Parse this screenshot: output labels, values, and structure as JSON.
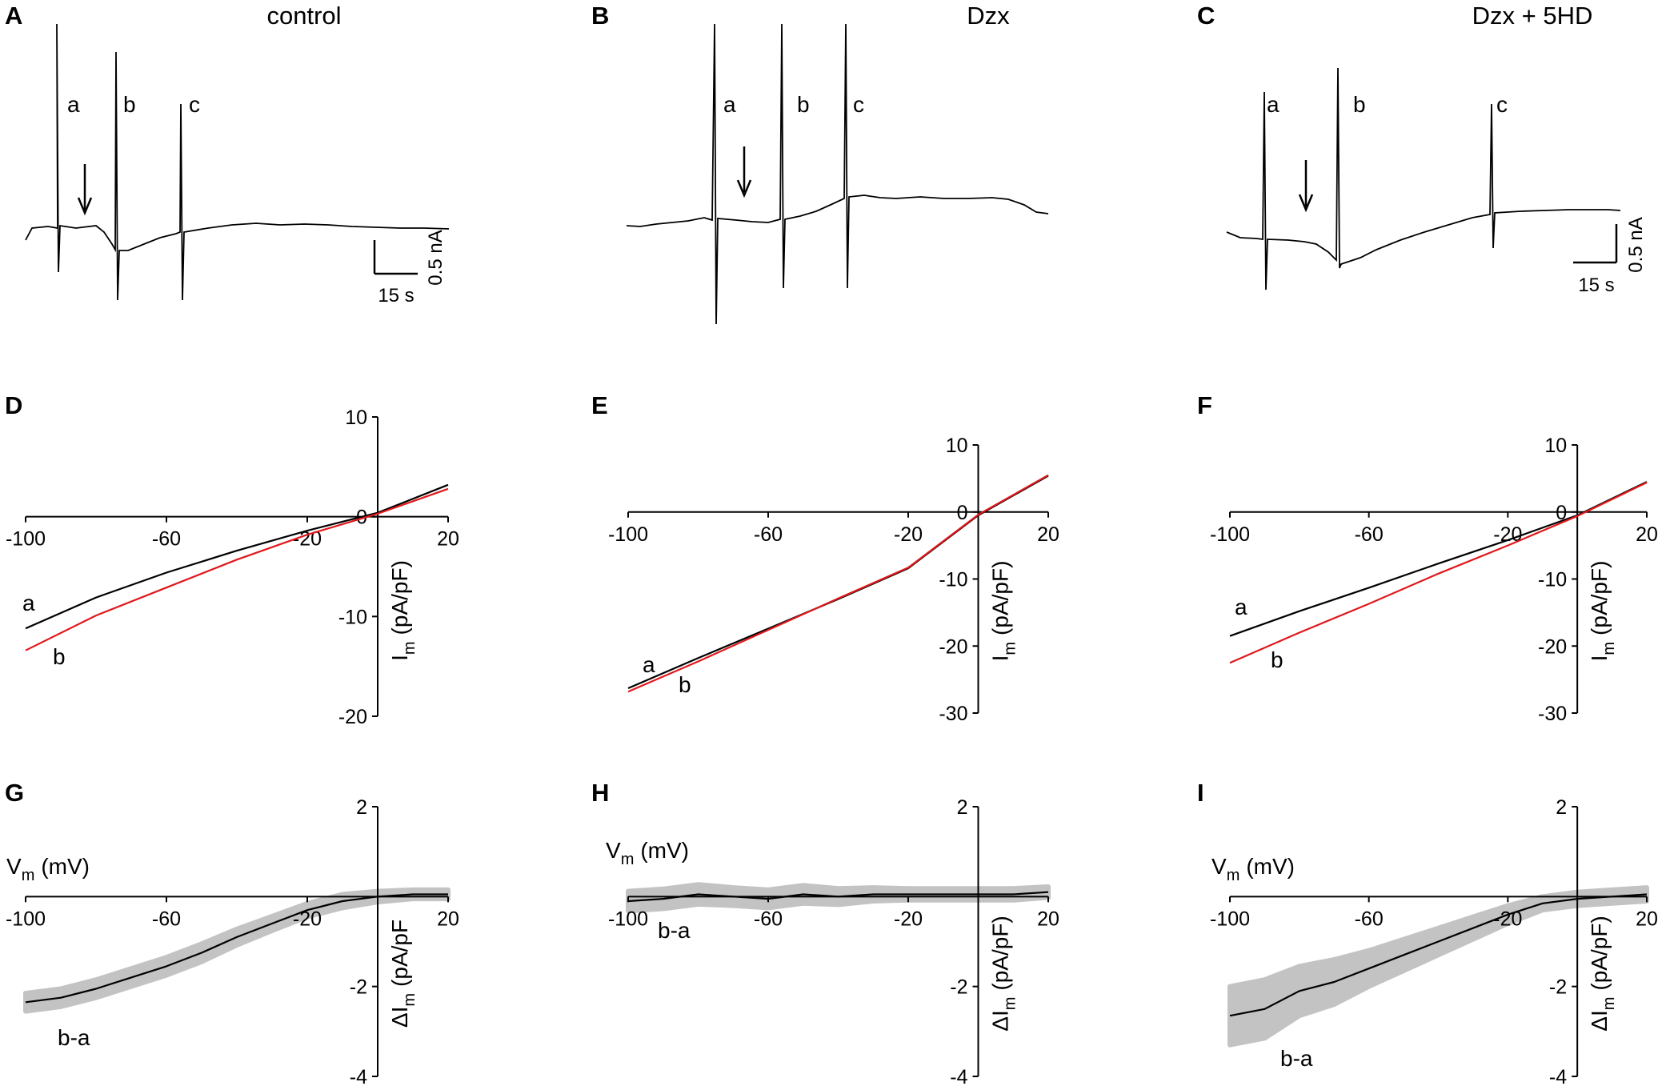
{
  "figure_colors": {
    "trace": "#000000",
    "trace_b": "#e0181c",
    "sem_band": "#c3c3c3"
  },
  "chart_data": [
    {
      "id": "A",
      "type": "line",
      "panel_label": "A",
      "title": "control",
      "series": [
        {
          "name": "current trace",
          "color": "#000000",
          "stimuli": [
            "a",
            "b",
            "c"
          ]
        }
      ],
      "arrow": "down",
      "annotations": [
        "a",
        "b",
        "c"
      ],
      "scalebar": {
        "time_label": "15 s",
        "amp_label": "0.5 nA"
      }
    },
    {
      "id": "B",
      "type": "line",
      "panel_label": "B",
      "title": "Dzx",
      "series": [
        {
          "name": "current trace",
          "color": "#000000",
          "stimuli": [
            "a",
            "b",
            "c"
          ]
        }
      ],
      "arrow": "down",
      "annotations": [
        "a",
        "b",
        "c"
      ]
    },
    {
      "id": "C",
      "type": "line",
      "panel_label": "C",
      "title": "Dzx + 5HD",
      "series": [
        {
          "name": "current trace",
          "color": "#000000",
          "stimuli": [
            "a",
            "b",
            "c"
          ]
        }
      ],
      "arrow": "down",
      "annotations": [
        "a",
        "b",
        "c"
      ],
      "scalebar": {
        "time_label": "15 s",
        "amp_label": "0.5 nA"
      }
    },
    {
      "id": "D",
      "type": "line",
      "panel_label": "D",
      "xlim": [
        -100,
        20
      ],
      "ylim": [
        -20,
        10
      ],
      "x_ticks": [
        "-100",
        "-60",
        "-20",
        "20"
      ],
      "y_ticks": [
        "10",
        "0",
        "-10",
        "-20"
      ],
      "ylabel_main": "I",
      "ylabel_sub": "m",
      "ylabel_unit": "(pA/pF)",
      "series": [
        {
          "name": "a",
          "color": "#000000",
          "x": [
            -100,
            -80,
            -60,
            -40,
            -20,
            0,
            20
          ],
          "values": [
            -11.2,
            -8.1,
            -5.6,
            -3.4,
            -1.4,
            0.4,
            3.2
          ]
        },
        {
          "name": "b",
          "color": "#e0181c",
          "x": [
            -100,
            -80,
            -60,
            -40,
            -20,
            0,
            20
          ],
          "values": [
            -13.4,
            -9.9,
            -7.1,
            -4.3,
            -1.8,
            0.3,
            2.8
          ]
        }
      ]
    },
    {
      "id": "E",
      "type": "line",
      "panel_label": "E",
      "xlim": [
        -100,
        20
      ],
      "ylim": [
        -30,
        10
      ],
      "x_ticks": [
        "-100",
        "-60",
        "-20",
        "20"
      ],
      "y_ticks": [
        "10",
        "0",
        "-10",
        "-20",
        "-30"
      ],
      "ylabel_main": "I",
      "ylabel_sub": "m",
      "ylabel_unit": "(pA/pF)",
      "series": [
        {
          "name": "a",
          "color": "#000000",
          "x": [
            -100,
            -80,
            -60,
            -40,
            -20,
            0,
            20
          ],
          "values": [
            -26.3,
            -21.8,
            -17.4,
            -13.0,
            -8.4,
            -0.5,
            5.4
          ]
        },
        {
          "name": "b",
          "color": "#e0181c",
          "x": [
            -100,
            -80,
            -60,
            -40,
            -20,
            0,
            20
          ],
          "values": [
            -26.8,
            -22.3,
            -17.6,
            -12.9,
            -8.3,
            -0.4,
            5.5
          ]
        }
      ]
    },
    {
      "id": "F",
      "type": "line",
      "panel_label": "F",
      "xlim": [
        -100,
        20
      ],
      "ylim": [
        -30,
        10
      ],
      "x_ticks": [
        "-100",
        "-60",
        "-20",
        "20"
      ],
      "y_ticks": [
        "10",
        "0",
        "-10",
        "-20",
        "-30"
      ],
      "ylabel_main": "I",
      "ylabel_sub": "m",
      "ylabel_unit": "(pA/pF)",
      "series": [
        {
          "name": "a",
          "color": "#000000",
          "x": [
            -100,
            -80,
            -60,
            -40,
            -20,
            0,
            20
          ],
          "values": [
            -18.5,
            -14.8,
            -11.3,
            -7.7,
            -4.2,
            -0.5,
            4.5
          ]
        },
        {
          "name": "b",
          "color": "#e0181c",
          "x": [
            -100,
            -80,
            -60,
            -40,
            -20,
            0,
            20
          ],
          "values": [
            -22.5,
            -18.0,
            -13.7,
            -9.2,
            -5.0,
            -0.6,
            4.4
          ]
        }
      ]
    },
    {
      "id": "G",
      "type": "line",
      "panel_label": "G",
      "xlim": [
        -100,
        20
      ],
      "ylim": [
        -4,
        2
      ],
      "x_ticks": [
        "-100",
        "-60",
        "-20",
        "20"
      ],
      "y_ticks": [
        "2",
        "-2",
        "-4"
      ],
      "xlabel_main": "V",
      "xlabel_sub": "m",
      "xlabel_unit": "(mV)",
      "ylabel_main": "ΔI",
      "ylabel_sub": "m",
      "ylabel_unit": "(pA/pF",
      "series": [
        {
          "name": "b-a",
          "color": "#000000",
          "x": [
            -100,
            -90,
            -80,
            -70,
            -60,
            -50,
            -40,
            -30,
            -20,
            -10,
            0,
            10,
            20
          ],
          "values": [
            -2.35,
            -2.25,
            -2.05,
            -1.8,
            -1.55,
            -1.25,
            -0.9,
            -0.6,
            -0.3,
            -0.1,
            0.0,
            0.05,
            0.05
          ]
        }
      ],
      "sem_band": {
        "name": "SEM",
        "x": [
          -100,
          -90,
          -80,
          -70,
          -60,
          -50,
          -40,
          -30,
          -20,
          -10,
          0,
          10,
          20
        ],
        "upper": [
          -2.15,
          -2.05,
          -1.85,
          -1.6,
          -1.35,
          -1.05,
          -0.72,
          -0.44,
          -0.15,
          0.05,
          0.12,
          0.15,
          0.15
        ],
        "lower": [
          -2.55,
          -2.45,
          -2.25,
          -2.0,
          -1.75,
          -1.45,
          -1.08,
          -0.76,
          -0.45,
          -0.25,
          -0.12,
          -0.05,
          -0.05
        ]
      }
    },
    {
      "id": "H",
      "type": "line",
      "panel_label": "H",
      "xlim": [
        -100,
        20
      ],
      "ylim": [
        -4,
        2
      ],
      "x_ticks": [
        "-100",
        "-60",
        "-20",
        "20"
      ],
      "y_ticks": [
        "2",
        "-2",
        "-4"
      ],
      "xlabel_main": "V",
      "xlabel_sub": "m",
      "xlabel_unit": "(mV)",
      "ylabel_main": "ΔI",
      "ylabel_sub": "m",
      "ylabel_unit": "(pA/pF)",
      "series": [
        {
          "name": "b-a",
          "color": "#000000",
          "x": [
            -100,
            -90,
            -80,
            -70,
            -60,
            -50,
            -40,
            -30,
            -20,
            -10,
            0,
            10,
            20
          ],
          "values": [
            -0.1,
            -0.05,
            0.05,
            0.0,
            -0.05,
            0.05,
            0.0,
            0.05,
            0.05,
            0.05,
            0.05,
            0.05,
            0.1
          ]
        }
      ],
      "sem_band": {
        "name": "SEM",
        "x": [
          -100,
          -90,
          -80,
          -70,
          -60,
          -50,
          -40,
          -30,
          -20,
          -10,
          0,
          10,
          20
        ],
        "upper": [
          0.12,
          0.17,
          0.27,
          0.2,
          0.15,
          0.25,
          0.18,
          0.2,
          0.18,
          0.18,
          0.18,
          0.18,
          0.22
        ],
        "lower": [
          -0.32,
          -0.27,
          -0.17,
          -0.2,
          -0.25,
          -0.15,
          -0.18,
          -0.1,
          -0.08,
          -0.08,
          -0.08,
          -0.08,
          -0.02
        ]
      }
    },
    {
      "id": "I",
      "type": "line",
      "panel_label": "I",
      "xlim": [
        -100,
        20
      ],
      "ylim": [
        -4,
        2
      ],
      "x_ticks": [
        "-100",
        "-60",
        "-20",
        "20"
      ],
      "y_ticks": [
        "2",
        "-2",
        "-4"
      ],
      "xlabel_main": "V",
      "xlabel_sub": "m",
      "xlabel_unit": "(mV)",
      "ylabel_main": "ΔI",
      "ylabel_sub": "m",
      "ylabel_unit": "(pA/pF)",
      "series": [
        {
          "name": "b-a",
          "color": "#000000",
          "x": [
            -100,
            -90,
            -80,
            -70,
            -60,
            -50,
            -40,
            -30,
            -20,
            -10,
            0,
            10,
            20
          ],
          "values": [
            -2.65,
            -2.5,
            -2.1,
            -1.9,
            -1.6,
            -1.3,
            -1.0,
            -0.7,
            -0.4,
            -0.15,
            -0.05,
            0.0,
            0.05
          ]
        }
      ],
      "sem_band": {
        "name": "SEM",
        "x": [
          -100,
          -90,
          -80,
          -70,
          -60,
          -50,
          -40,
          -30,
          -20,
          -10,
          0,
          10,
          20
        ],
        "upper": [
          -2.0,
          -1.85,
          -1.55,
          -1.4,
          -1.2,
          -0.95,
          -0.7,
          -0.45,
          -0.2,
          0.0,
          0.1,
          0.15,
          0.2
        ],
        "lower": [
          -3.3,
          -3.15,
          -2.65,
          -2.4,
          -2.0,
          -1.65,
          -1.3,
          -0.95,
          -0.6,
          -0.3,
          -0.2,
          -0.15,
          -0.1
        ]
      }
    }
  ]
}
